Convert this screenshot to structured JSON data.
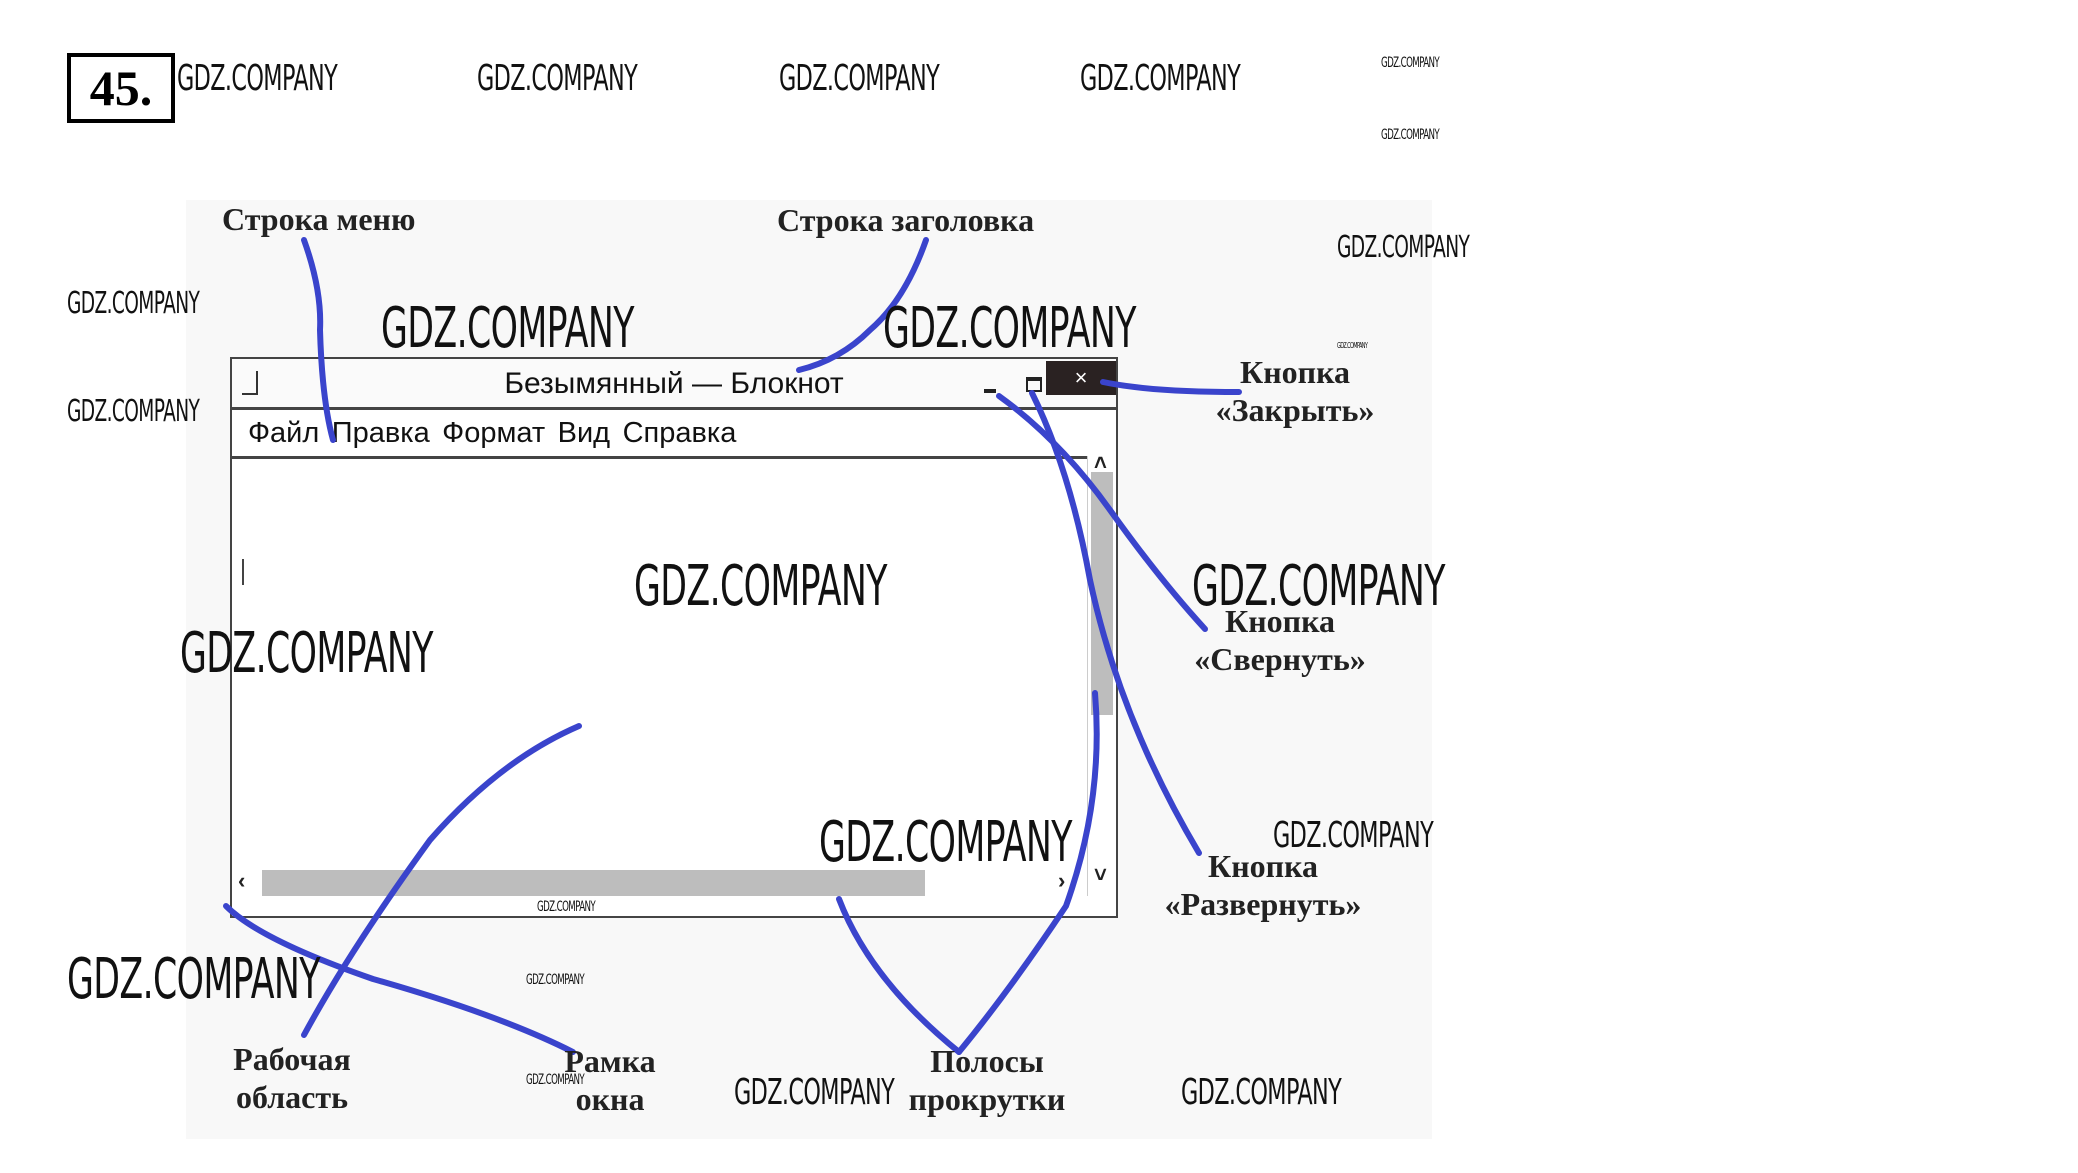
{
  "exercise_number": "45.",
  "watermark": "GDZ.COMPANY",
  "notepad": {
    "title": "Безымянный — Блокнот",
    "close_glyph": "×",
    "menu": [
      "Файл",
      "Правка",
      "Формат",
      "Вид",
      "Справка"
    ],
    "icons": [
      "app-icon",
      "minimize-icon",
      "maximize-icon",
      "close-icon",
      "arrow-up-icon",
      "arrow-down-icon",
      "arrow-left-icon",
      "arrow-right-icon"
    ]
  },
  "labels": {
    "menu_bar": "Строка меню",
    "title_bar": "Строка заголовка",
    "close_1": "Кнопка",
    "close_2": "«Закрыть»",
    "minimize_1": "Кнопка",
    "minimize_2": "«Свернуть»",
    "maximize_1": "Кнопка",
    "maximize_2": "«Развернуть»",
    "work_area_1": "Рабочая",
    "work_area_2": "область",
    "frame_1": "Рамка",
    "frame_2": "окна",
    "scrollbars_1": "Полосы",
    "scrollbars_2": "прокрутки"
  },
  "colors": {
    "pointer_lines": "#3a44cc",
    "close_button": "#2a2222"
  }
}
